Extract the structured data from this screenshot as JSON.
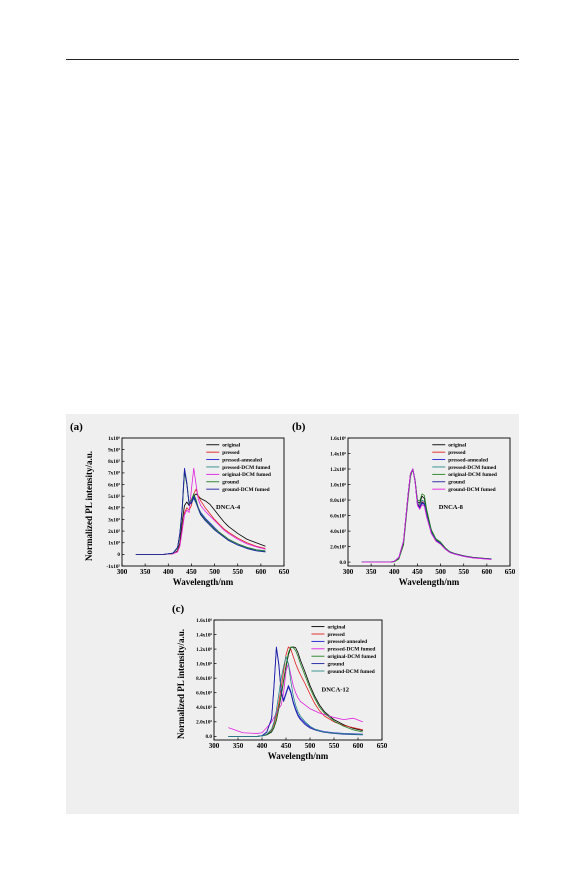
{
  "chart_data": [
    {
      "type": "line",
      "panel": "(a)",
      "annotation": "DNCA-4",
      "xlabel": "Wavelength/nm",
      "ylabel": "Normalized PL intensity/a.u.",
      "xlim": [
        300,
        650
      ],
      "ylim": [
        -100000,
        1000000
      ],
      "x_ticks": [
        300,
        350,
        400,
        450,
        500,
        550,
        600,
        650
      ],
      "y_tick_labels": [
        "-1x10⁵",
        "0",
        "1x10⁵",
        "2x10⁵",
        "3x10⁵",
        "4x10⁵",
        "5x10⁵",
        "6x10⁵",
        "7x10⁵",
        "8x10⁵",
        "9x10⁵",
        "1x10⁶"
      ],
      "legend_position": "top-right",
      "x": [
        330,
        360,
        390,
        410,
        420,
        425,
        430,
        435,
        440,
        445,
        450,
        455,
        460,
        465,
        470,
        480,
        490,
        500,
        510,
        520,
        530,
        550,
        570,
        590,
        610
      ],
      "series": [
        {
          "name": "original",
          "color": "#000000",
          "values": [
            0,
            0,
            0,
            5000,
            30000,
            100000,
            280000,
            420000,
            450000,
            420000,
            450000,
            500000,
            520000,
            500000,
            480000,
            460000,
            430000,
            380000,
            330000,
            280000,
            240000,
            180000,
            130000,
            100000,
            70000
          ]
        },
        {
          "name": "pressed",
          "color": "#e02020",
          "values": [
            0,
            0,
            0,
            5000,
            25000,
            80000,
            220000,
            360000,
            400000,
            380000,
            420000,
            520000,
            560000,
            500000,
            460000,
            400000,
            350000,
            300000,
            260000,
            220000,
            190000,
            140000,
            100000,
            70000,
            50000
          ]
        },
        {
          "name": "pressed-annealed",
          "color": "#1c1cd8",
          "values": [
            0,
            0,
            0,
            10000,
            60000,
            180000,
            400000,
            740000,
            620000,
            440000,
            450000,
            500000,
            460000,
            400000,
            360000,
            310000,
            270000,
            230000,
            190000,
            160000,
            130000,
            90000,
            60000,
            40000,
            30000
          ]
        },
        {
          "name": "pressed-DCM fumed",
          "color": "#2a8a8a",
          "values": [
            0,
            0,
            0,
            10000,
            50000,
            170000,
            380000,
            720000,
            600000,
            430000,
            440000,
            480000,
            440000,
            390000,
            340000,
            290000,
            250000,
            210000,
            180000,
            150000,
            120000,
            80000,
            55000,
            35000,
            25000
          ]
        },
        {
          "name": "original-DCM fumed",
          "color": "#e020e0",
          "values": [
            0,
            0,
            0,
            5000,
            20000,
            70000,
            200000,
            340000,
            380000,
            360000,
            560000,
            740000,
            600000,
            470000,
            420000,
            370000,
            330000,
            290000,
            250000,
            210000,
            180000,
            130000,
            90000,
            65000,
            45000
          ]
        },
        {
          "name": "ground",
          "color": "#208020",
          "values": [
            0,
            0,
            0,
            10000,
            55000,
            170000,
            370000,
            700000,
            610000,
            440000,
            470000,
            520000,
            470000,
            400000,
            350000,
            300000,
            260000,
            220000,
            190000,
            160000,
            130000,
            90000,
            60000,
            40000,
            30000
          ]
        },
        {
          "name": "ground-DCM fumed",
          "color": "#1e1ea0",
          "values": [
            0,
            0,
            0,
            10000,
            60000,
            180000,
            390000,
            730000,
            610000,
            430000,
            440000,
            490000,
            450000,
            390000,
            340000,
            290000,
            250000,
            210000,
            180000,
            150000,
            120000,
            80000,
            50000,
            30000,
            20000
          ]
        }
      ]
    },
    {
      "type": "line",
      "panel": "(b)",
      "annotation": "DNCA-8",
      "xlabel": "Wavelength/nm",
      "ylabel": "",
      "xlim": [
        300,
        650
      ],
      "ylim": [
        -50000,
        1600000
      ],
      "x_ticks": [
        300,
        350,
        400,
        450,
        500,
        550,
        600,
        650
      ],
      "y_tick_labels": [
        "0.0",
        "2.0x10⁵",
        "4.0x10⁵",
        "6.0x10⁵",
        "8.0x10⁵",
        "1.0x10⁶",
        "1.2x10⁶",
        "1.4x10⁶",
        "1.6x10⁶"
      ],
      "legend_position": "top-right",
      "x": [
        330,
        360,
        390,
        400,
        410,
        420,
        430,
        435,
        440,
        445,
        450,
        455,
        460,
        465,
        470,
        480,
        490,
        500,
        510,
        520,
        530,
        550,
        570,
        590,
        610
      ],
      "series": [
        {
          "name": "original",
          "color": "#000000",
          "values": [
            0,
            0,
            0,
            10000,
            50000,
            250000,
            850000,
            1120000,
            1200000,
            1050000,
            780000,
            760000,
            850000,
            820000,
            650000,
            400000,
            290000,
            250000,
            180000,
            130000,
            110000,
            80000,
            60000,
            50000,
            40000
          ]
        },
        {
          "name": "pressed",
          "color": "#e02020",
          "values": [
            0,
            0,
            0,
            10000,
            60000,
            270000,
            880000,
            1140000,
            1200000,
            1040000,
            750000,
            720000,
            780000,
            760000,
            600000,
            380000,
            280000,
            240000,
            175000,
            130000,
            110000,
            80000,
            60000,
            50000,
            40000
          ]
        },
        {
          "name": "pressed-annealed",
          "color": "#1c1cd8",
          "values": [
            0,
            0,
            0,
            10000,
            60000,
            270000,
            880000,
            1140000,
            1200000,
            1040000,
            740000,
            700000,
            760000,
            740000,
            590000,
            375000,
            275000,
            235000,
            170000,
            125000,
            105000,
            75000,
            55000,
            45000,
            35000
          ]
        },
        {
          "name": "pressed-DCM fumed",
          "color": "#2a8a8a",
          "values": [
            0,
            0,
            0,
            10000,
            55000,
            260000,
            860000,
            1130000,
            1200000,
            1045000,
            760000,
            740000,
            800000,
            780000,
            620000,
            390000,
            285000,
            245000,
            178000,
            130000,
            110000,
            80000,
            60000,
            50000,
            40000
          ]
        },
        {
          "name": "original-DCM fumed",
          "color": "#208020",
          "values": [
            0,
            0,
            0,
            5000,
            40000,
            220000,
            820000,
            1100000,
            1200000,
            1060000,
            800000,
            790000,
            880000,
            860000,
            680000,
            420000,
            300000,
            260000,
            185000,
            135000,
            112000,
            82000,
            62000,
            52000,
            42000
          ]
        },
        {
          "name": "ground",
          "color": "#1e1ea0",
          "values": [
            0,
            0,
            0,
            10000,
            60000,
            270000,
            880000,
            1140000,
            1200000,
            1040000,
            750000,
            710000,
            770000,
            750000,
            595000,
            378000,
            278000,
            238000,
            172000,
            128000,
            108000,
            78000,
            58000,
            48000,
            38000
          ]
        },
        {
          "name": "ground-DCM fumed",
          "color": "#e020e0",
          "values": [
            0,
            0,
            0,
            10000,
            60000,
            270000,
            880000,
            1140000,
            1200000,
            1040000,
            730000,
            680000,
            740000,
            720000,
            580000,
            370000,
            270000,
            230000,
            168000,
            124000,
            104000,
            74000,
            54000,
            44000,
            34000
          ]
        }
      ]
    },
    {
      "type": "line",
      "panel": "(c)",
      "annotation": "DNCA-12",
      "xlabel": "Wavelength/nm",
      "ylabel": "Normalized PL intensity/a.u.",
      "xlim": [
        300,
        650
      ],
      "ylim": [
        -50000,
        1600000
      ],
      "x_ticks": [
        300,
        350,
        400,
        450,
        500,
        550,
        600,
        650
      ],
      "y_tick_labels": [
        "0.0",
        "2.0x10⁵",
        "4.0x10⁵",
        "6.0x10⁵",
        "8.0x10⁵",
        "1.0x10⁶",
        "1.2x10⁶",
        "1.4x10⁶",
        "1.6x10⁶"
      ],
      "legend_position": "top-right",
      "x": [
        330,
        360,
        390,
        400,
        410,
        420,
        425,
        430,
        435,
        440,
        445,
        450,
        455,
        460,
        465,
        470,
        475,
        480,
        490,
        500,
        510,
        520,
        530,
        550,
        570,
        590,
        610
      ],
      "series": [
        {
          "name": "original",
          "color": "#000000",
          "values": [
            0,
            0,
            0,
            5000,
            20000,
            60000,
            120000,
            220000,
            380000,
            560000,
            760000,
            950000,
            1120000,
            1220000,
            1230000,
            1220000,
            1150000,
            1050000,
            880000,
            700000,
            550000,
            430000,
            340000,
            230000,
            160000,
            110000,
            80000
          ]
        },
        {
          "name": "pressed",
          "color": "#e02020",
          "values": [
            0,
            0,
            0,
            5000,
            30000,
            90000,
            170000,
            290000,
            460000,
            680000,
            900000,
            1120000,
            1230000,
            1200000,
            1100000,
            1000000,
            920000,
            850000,
            720000,
            580000,
            450000,
            350000,
            280000,
            200000,
            150000,
            120000,
            90000
          ]
        },
        {
          "name": "pressed-annealed",
          "color": "#1c1cd8",
          "values": [
            0,
            0,
            0,
            10000,
            60000,
            250000,
            700000,
            1230000,
            1000000,
            620000,
            500000,
            600000,
            700000,
            620000,
            480000,
            380000,
            300000,
            250000,
            180000,
            130000,
            100000,
            80000,
            65000,
            50000,
            40000,
            35000,
            30000
          ]
        },
        {
          "name": "pressed-DCM fumed",
          "color": "#e020e0",
          "values": [
            120000,
            50000,
            40000,
            50000,
            120000,
            200000,
            260000,
            320000,
            380000,
            430000,
            600000,
            900000,
            1000000,
            850000,
            700000,
            600000,
            530000,
            480000,
            430000,
            380000,
            350000,
            320000,
            300000,
            260000,
            230000,
            250000,
            200000
          ]
        },
        {
          "name": "original-DCM fumed",
          "color": "#208020",
          "values": [
            0,
            0,
            0,
            5000,
            25000,
            70000,
            130000,
            230000,
            390000,
            580000,
            780000,
            980000,
            1150000,
            1230000,
            1220000,
            1180000,
            1100000,
            1000000,
            830000,
            660000,
            520000,
            400000,
            320000,
            210000,
            140000,
            90000,
            60000
          ]
        },
        {
          "name": "ground",
          "color": "#1e1ea0",
          "values": [
            0,
            0,
            0,
            10000,
            60000,
            240000,
            680000,
            1220000,
            980000,
            600000,
            480000,
            580000,
            680000,
            600000,
            460000,
            360000,
            280000,
            230000,
            160000,
            115000,
            90000,
            70000,
            55000,
            40000,
            30000,
            25000,
            20000
          ]
        },
        {
          "name": "ground-DCM fumed",
          "color": "#2a8a8a",
          "values": [
            0,
            0,
            0,
            5000,
            30000,
            100000,
            200000,
            360000,
            580000,
            800000,
            960000,
            1100000,
            1000000,
            760000,
            560000,
            430000,
            340000,
            280000,
            200000,
            140000,
            100000,
            75000,
            60000,
            45000,
            35000,
            30000,
            25000
          ]
        }
      ]
    }
  ]
}
